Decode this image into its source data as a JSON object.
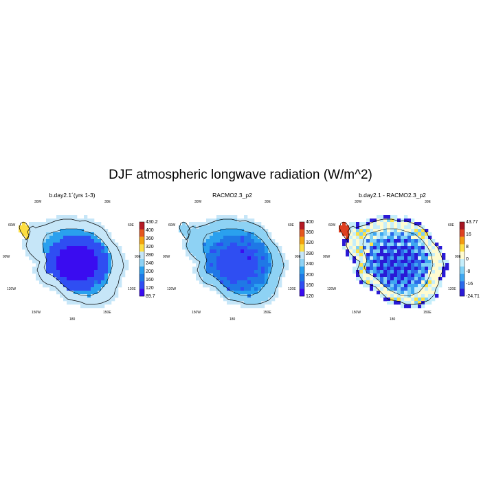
{
  "title": "DJF atmospheric longwave radiation (W/m^2)",
  "chart_data": [
    {
      "type": "heatmap",
      "title": "b.day2.1´(yrs 1-3)",
      "region": "Antarctica (south polar stereographic)",
      "lon_labels": [
        "30W",
        "30E",
        "60W",
        "60E",
        "90W",
        "90E",
        "120W",
        "120E",
        "150W",
        "150E",
        "180"
      ],
      "colorbar": {
        "labels": [
          "430.2",
          "400",
          "360",
          "320",
          "280",
          "240",
          "200",
          "160",
          "120",
          "89.7"
        ],
        "min": 89.7,
        "max": 430.2
      },
      "field": {
        "interior_value": 105,
        "plateau_value": 150,
        "slope_value": 200,
        "coast_value": 240,
        "shelf_value": 270,
        "peninsula_value": 300
      }
    },
    {
      "type": "heatmap",
      "title": "RACMO2.3_p2",
      "region": "Antarctica (south polar stereographic)",
      "lon_labels": [
        "30W",
        "30E",
        "60W",
        "60E",
        "90W",
        "90E",
        "120W",
        "120E",
        "150W",
        "150E",
        "180"
      ],
      "colorbar": {
        "labels": [
          "400",
          "360",
          "320",
          "280",
          "240",
          "200",
          "160",
          "120"
        ],
        "min": 100,
        "max": 430
      },
      "field": {
        "interior_value": 140,
        "plateau_value": 170,
        "slope_value": 205,
        "coast_value": 240,
        "shelf_value": 260,
        "peninsula_value": 255
      }
    },
    {
      "type": "heatmap",
      "title": "b.day2.1 - RACMO2.3_p2",
      "region": "Antarctica (south polar stereographic)",
      "lon_labels": [
        "30W",
        "30E",
        "60W",
        "60E",
        "90W",
        "90E",
        "120W",
        "120E",
        "150W",
        "150E",
        "180"
      ],
      "colorbar": {
        "labels": [
          "43.77",
          "16",
          "8",
          "0",
          "-8",
          "-16",
          "-24.71"
        ],
        "min": -24.71,
        "max": 43.77
      },
      "field": {
        "interior_value": -18,
        "plateau_value": -10,
        "slope_value": 2,
        "coast_value": 6,
        "shelf_value": 10,
        "peninsula_value": 35
      }
    }
  ]
}
